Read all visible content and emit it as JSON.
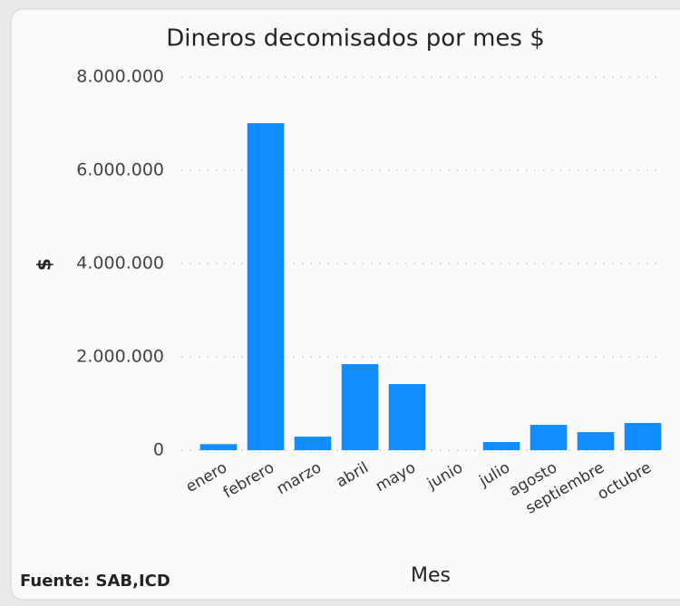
{
  "chart_data": {
    "type": "bar",
    "title": "Dineros decomisados por mes $",
    "x_label": "Mes",
    "y_label": "$",
    "source": "Fuente: SAB,ICD",
    "categories": [
      "enero",
      "febrero",
      "marzo",
      "abril",
      "mayo",
      "junio",
      "julio",
      "agosto",
      "septiembre",
      "octubre"
    ],
    "values": [
      130000,
      7010000,
      290000,
      1845000,
      1417000,
      0,
      175000,
      544000,
      388000,
      583000
    ],
    "color": "#118dff",
    "ylim": [
      0,
      8000000
    ],
    "yticks": [
      0,
      {
        "value": 2000000,
        "label": "2.000.000"
      },
      {
        "value": 4000000,
        "label": "4.000.000"
      },
      {
        "value": 6000000,
        "label": "6.000.000"
      },
      {
        "value": 8000000,
        "label": "8.000.000"
      }
    ],
    "grid": true
  }
}
